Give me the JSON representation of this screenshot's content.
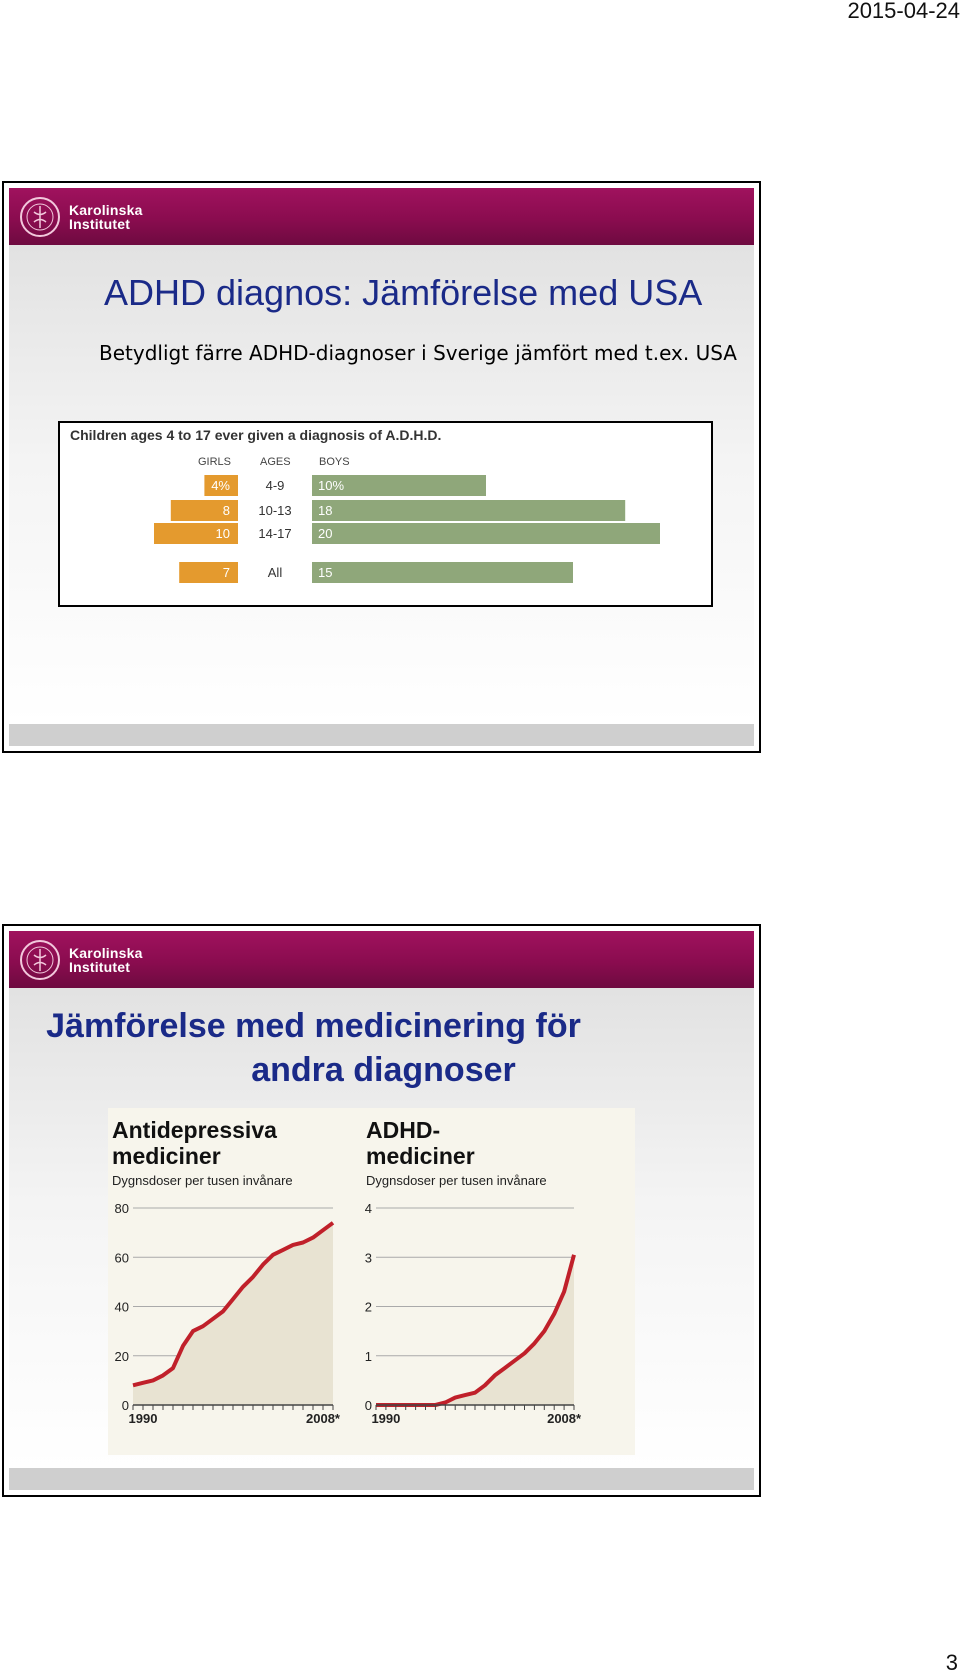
{
  "page": {
    "date": "2015-04-24",
    "number": "3"
  },
  "logo": {
    "line1": "Karolinska",
    "line2": "Institutet"
  },
  "slide1": {
    "title": "ADHD diagnos: Jämförelse med USA",
    "subtitle": "Betydligt färre ADHD-diagnoser i Sverige jämfört med t.ex. USA",
    "chart_data": {
      "type": "bar",
      "title": "Children ages 4 to 17 ever given a diagnosis of A.D.H.D.",
      "columns": {
        "left": "GIRLS",
        "middle": "AGES",
        "right": "BOYS"
      },
      "categories": [
        "4-9",
        "10-13",
        "14-17",
        "All"
      ],
      "series": [
        {
          "name": "GIRLS",
          "values": [
            4,
            8,
            10,
            7
          ],
          "labels": [
            "4%",
            "8",
            "10",
            "7"
          ],
          "color": "#e49a2e"
        },
        {
          "name": "BOYS",
          "values": [
            10,
            18,
            20,
            15
          ],
          "labels": [
            "10%",
            "18",
            "20",
            "15"
          ],
          "color": "#8fa77a"
        }
      ]
    }
  },
  "slide2": {
    "title_line1": "Jämförelse med medicinering för",
    "title_line2": "andra diagnoser",
    "chart_data": [
      {
        "type": "area",
        "title": "Antidepressiva mediciner",
        "subtitle": "Dygnsdoser per tusen invånare",
        "ylim": [
          0,
          80
        ],
        "yticks": [
          "0",
          "20",
          "40",
          "60",
          "80"
        ],
        "xtick_labels": [
          "1990",
          "2008*"
        ],
        "x": [
          1989,
          1990,
          1991,
          1992,
          1993,
          1994,
          1995,
          1996,
          1997,
          1998,
          1999,
          2000,
          2001,
          2002,
          2003,
          2004,
          2005,
          2006,
          2007,
          2008,
          2009
        ],
        "y": [
          8,
          9,
          10,
          12,
          15,
          24,
          30,
          32,
          35,
          38,
          43,
          48,
          52,
          57,
          61,
          63,
          65,
          66,
          68,
          71,
          74
        ],
        "line_color": "#c0202a",
        "fill_color": "#e8e3d2"
      },
      {
        "type": "area",
        "title": "ADHD-mediciner",
        "subtitle": "Dygnsdoser per tusen invånare",
        "ylim": [
          0,
          4
        ],
        "yticks": [
          "0",
          "1",
          "2",
          "3",
          "4"
        ],
        "xtick_labels": [
          "1990",
          "2008*"
        ],
        "x": [
          1989,
          1990,
          1991,
          1992,
          1993,
          1994,
          1995,
          1996,
          1997,
          1998,
          1999,
          2000,
          2001,
          2002,
          2003,
          2004,
          2005,
          2006,
          2007,
          2008,
          2009
        ],
        "y": [
          0.0,
          0.0,
          0.0,
          0.0,
          0.0,
          0.0,
          0.0,
          0.05,
          0.15,
          0.2,
          0.25,
          0.4,
          0.6,
          0.75,
          0.9,
          1.05,
          1.25,
          1.5,
          1.85,
          2.3,
          3.05
        ],
        "line_color": "#c0202a",
        "fill_color": "#e8e3d2"
      }
    ]
  }
}
